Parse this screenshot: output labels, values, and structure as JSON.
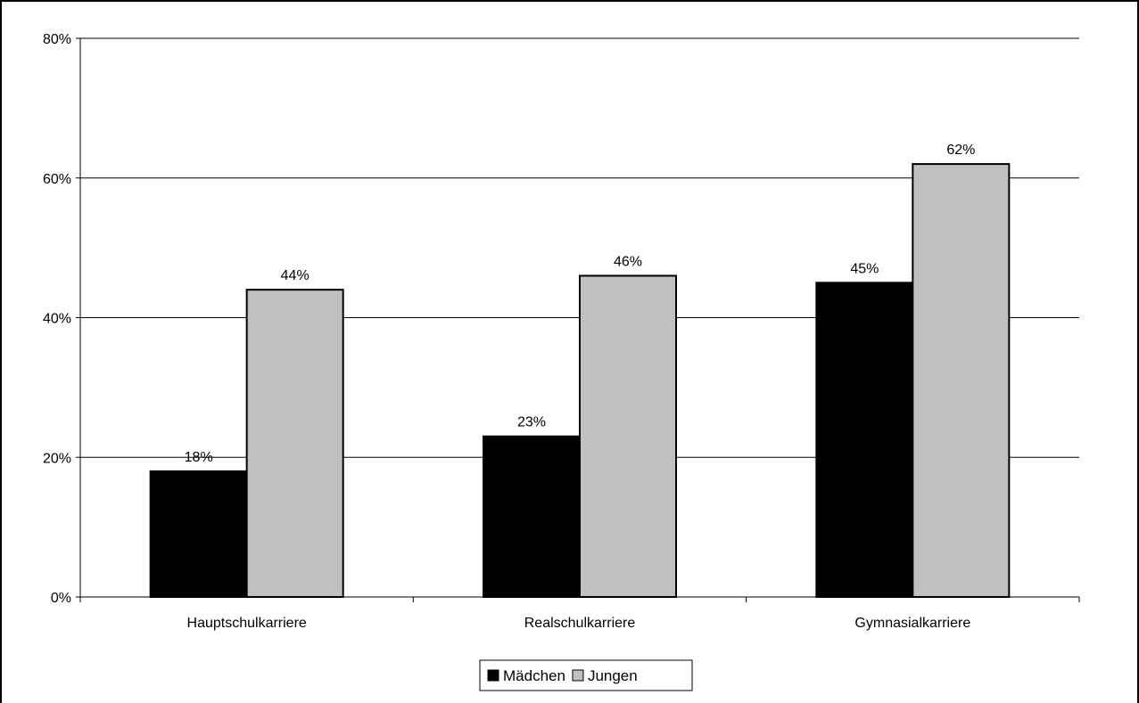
{
  "chart_data": {
    "type": "bar",
    "categories": [
      "Hauptschulkarriere",
      "Realschulkarriere",
      "Gymnasialkarriere"
    ],
    "series": [
      {
        "name": "Mädchen",
        "values": [
          18,
          23,
          45
        ],
        "labels": [
          "18%",
          "23%",
          "45%"
        ],
        "color": "#000000"
      },
      {
        "name": "Jungen",
        "values": [
          44,
          46,
          62
        ],
        "labels": [
          "44%",
          "46%",
          "62%"
        ],
        "color": "#c0c0c0"
      }
    ],
    "ylim": [
      0,
      80
    ],
    "yticks": [
      0,
      20,
      40,
      60,
      80
    ],
    "ytick_labels": [
      "0%",
      "20%",
      "40%",
      "60%",
      "80%"
    ],
    "grid": true,
    "legend": "bottom-center"
  }
}
